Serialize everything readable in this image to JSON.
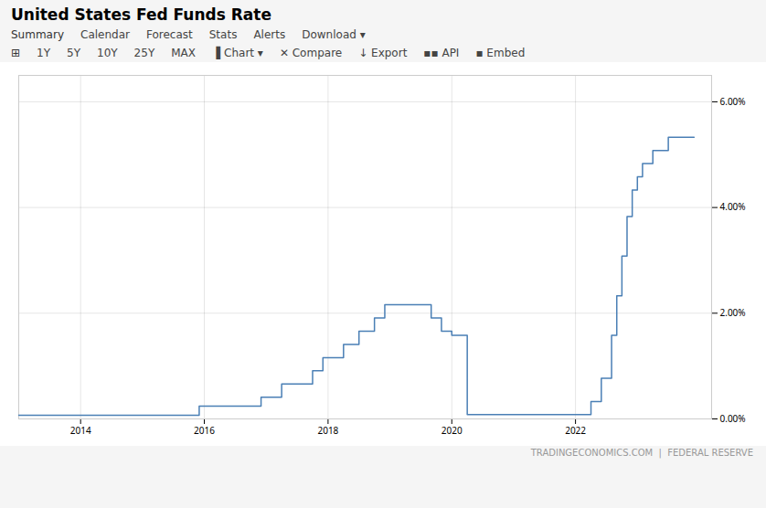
{
  "chart_data": {
    "type": "step",
    "title": "United States Fed Funds Rate",
    "annotations": [
      [
        "Summary",
        "Calendar",
        "Forecast",
        "Stats",
        "Alerts",
        "Download ▾"
      ],
      [
        "⊞",
        "1Y",
        "5Y",
        "10Y",
        "25Y",
        "MAX",
        "▐ Chart ▾",
        "✕ Compare",
        "↓ Export",
        "▪▪ API",
        "▪ Embed"
      ],
      [
        "TRADINGECONOMICS.COM  |  FEDERAL RESERVE"
      ]
    ],
    "x": [
      2013.0,
      2013.25,
      2013.5,
      2013.75,
      2014.0,
      2014.25,
      2014.5,
      2014.75,
      2015.0,
      2015.25,
      2015.5,
      2015.75,
      2015.917,
      2016.0,
      2016.25,
      2016.5,
      2016.75,
      2016.917,
      2017.0,
      2017.25,
      2017.5,
      2017.75,
      2017.917,
      2018.0,
      2018.25,
      2018.5,
      2018.75,
      2018.917,
      2019.0,
      2019.25,
      2019.5,
      2019.583,
      2019.667,
      2019.75,
      2019.833,
      2019.917,
      2020.0,
      2020.083,
      2020.25,
      2020.33,
      2020.5,
      2020.75,
      2021.0,
      2021.25,
      2021.5,
      2021.75,
      2022.0,
      2022.083,
      2022.25,
      2022.417,
      2022.583,
      2022.667,
      2022.75,
      2022.833,
      2022.917,
      2023.0,
      2023.083,
      2023.25,
      2023.33,
      2023.5,
      2023.583,
      2023.75,
      2023.917
    ],
    "values": [
      0.07,
      0.07,
      0.07,
      0.07,
      0.07,
      0.07,
      0.07,
      0.07,
      0.07,
      0.07,
      0.07,
      0.07,
      0.24,
      0.24,
      0.24,
      0.24,
      0.24,
      0.41,
      0.41,
      0.66,
      0.66,
      0.91,
      1.16,
      1.16,
      1.41,
      1.66,
      1.91,
      2.16,
      2.16,
      2.16,
      2.16,
      2.16,
      1.91,
      1.91,
      1.66,
      1.66,
      1.58,
      1.58,
      0.08,
      0.08,
      0.08,
      0.08,
      0.08,
      0.08,
      0.08,
      0.08,
      0.08,
      0.08,
      0.33,
      0.77,
      1.58,
      2.33,
      3.08,
      3.83,
      4.33,
      4.58,
      4.83,
      5.08,
      5.08,
      5.33,
      5.33,
      5.33,
      5.33
    ],
    "color": "#4a7fb5",
    "xlim": [
      2013.0,
      2024.2
    ],
    "xticks": [
      2014,
      2016,
      2018,
      2020,
      2022
    ],
    "ylim": [
      0,
      6.5
    ],
    "yticks": [
      {
        "value": 0.0,
        "label": "0.00%"
      },
      {
        "value": 2.0,
        "label": "2.00%"
      },
      {
        "value": 4.0,
        "label": "4.00%"
      },
      {
        "value": 6.0,
        "label": "6.00%"
      }
    ],
    "grid": true
  }
}
